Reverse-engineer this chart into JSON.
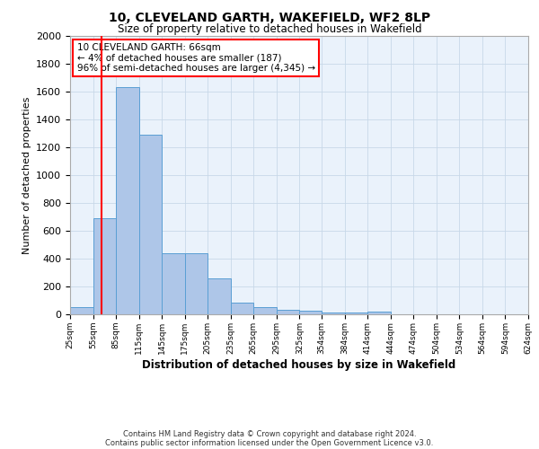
{
  "title1": "10, CLEVELAND GARTH, WAKEFIELD, WF2 8LP",
  "title2": "Size of property relative to detached houses in Wakefield",
  "xlabel": "Distribution of detached houses by size in Wakefield",
  "ylabel": "Number of detached properties",
  "footer1": "Contains HM Land Registry data © Crown copyright and database right 2024.",
  "footer2": "Contains public sector information licensed under the Open Government Licence v3.0.",
  "annotation_title": "10 CLEVELAND GARTH: 66sqm",
  "annotation_line1": "← 4% of detached houses are smaller (187)",
  "annotation_line2": "96% of semi-detached houses are larger (4,345) →",
  "bar_color": "#aec6e8",
  "bar_edge_color": "#5a9fd4",
  "red_line_x": 66,
  "ylim": [
    0,
    2000
  ],
  "yticks": [
    0,
    200,
    400,
    600,
    800,
    1000,
    1200,
    1400,
    1600,
    1800,
    2000
  ],
  "bin_edges": [
    25,
    55,
    85,
    115,
    145,
    175,
    205,
    235,
    265,
    295,
    325,
    354,
    384,
    414,
    444,
    474,
    504,
    534,
    564,
    594,
    624
  ],
  "bar_heights": [
    50,
    690,
    1630,
    1290,
    440,
    440,
    260,
    85,
    50,
    35,
    25,
    15,
    10,
    20,
    2,
    0,
    0,
    0,
    0,
    0
  ]
}
